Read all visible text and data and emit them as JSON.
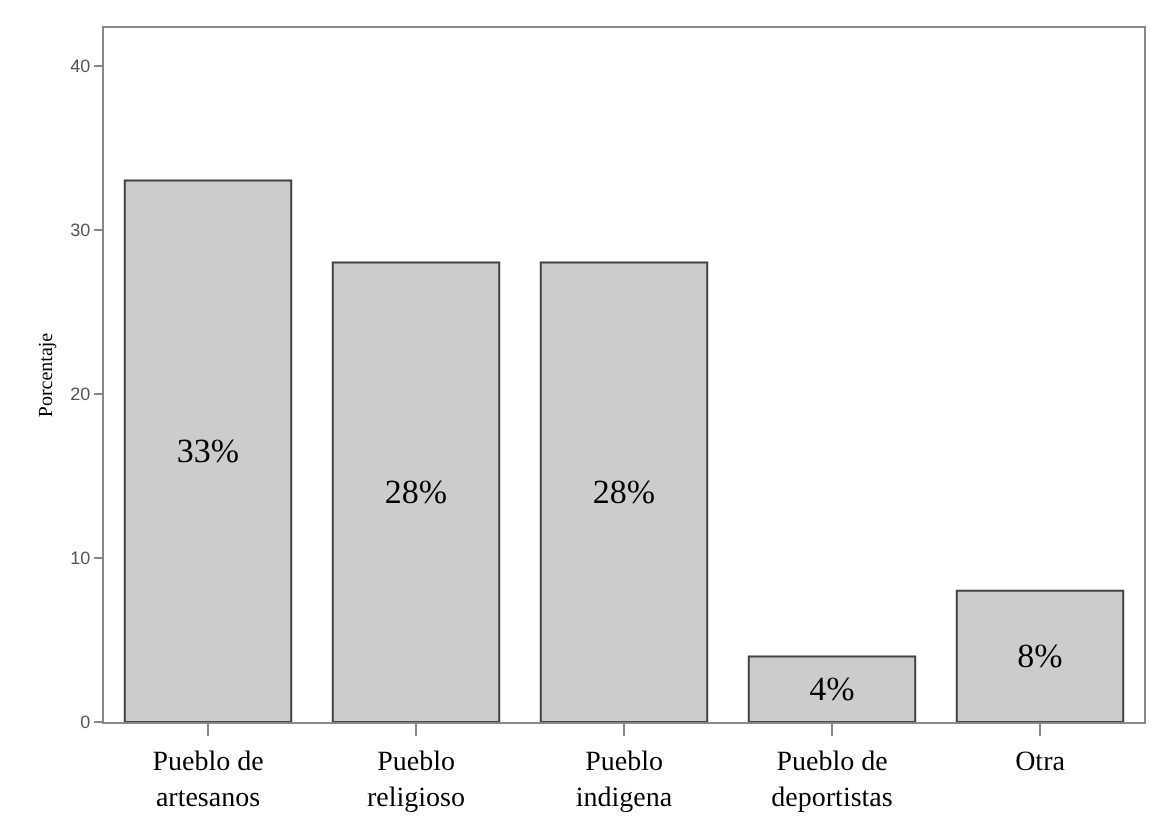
{
  "chart_data": {
    "type": "bar",
    "ylabel": "Porcentaje",
    "categories": [
      "Pueblo de artesanos",
      "Pueblo religioso",
      "Pueblo indigena",
      "Pueblo de deportistas",
      "Otra"
    ],
    "values": [
      33,
      28,
      28,
      4,
      8
    ],
    "value_labels": [
      "33%",
      "28%",
      "28%",
      "4%",
      "8%"
    ],
    "color": "#cccccc",
    "ylim": [
      0,
      42.3
    ],
    "yticks": [
      0,
      10,
      20,
      30,
      40
    ]
  }
}
